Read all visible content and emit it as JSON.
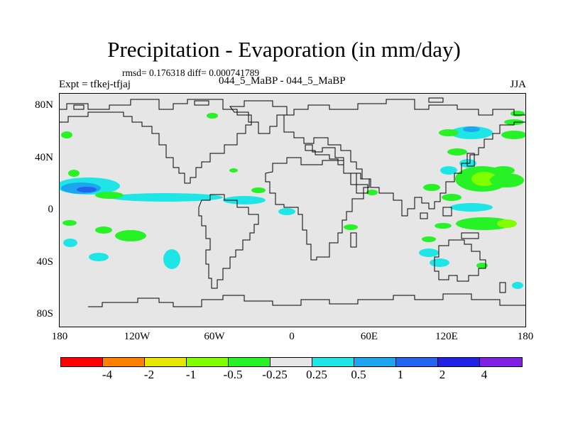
{
  "title": "Precipitation - Evaporation (in mm/day)",
  "stats_line": "rmsd= 0.176318 diff= 0.000741789",
  "expt_label": "Expt = tfkej-tfjaj",
  "subtitle": "044_5_MaBP - 044_5_MaBP",
  "season": "JJA",
  "axes": {
    "y_ticks": [
      "80N",
      "40N",
      "0",
      "40S",
      "80S"
    ],
    "x_ticks": [
      "180",
      "120W",
      "60W",
      "0",
      "60E",
      "120E",
      "180"
    ]
  },
  "colorbar": {
    "labels": [
      "-4",
      "-2",
      "-1",
      "-0.5",
      "-0.25",
      "0.25",
      "0.5",
      "1",
      "2",
      "4"
    ],
    "colors": [
      "#ff0000",
      "#ff8000",
      "#e6e600",
      "#80ff00",
      "#26f226",
      "#e6e6e6",
      "#1ee6e6",
      "#1ea5f0",
      "#2064f0",
      "#2020e6",
      "#8020e6"
    ]
  },
  "colors": {
    "land_outline": "#000000",
    "background": "#e6e6e6"
  }
}
